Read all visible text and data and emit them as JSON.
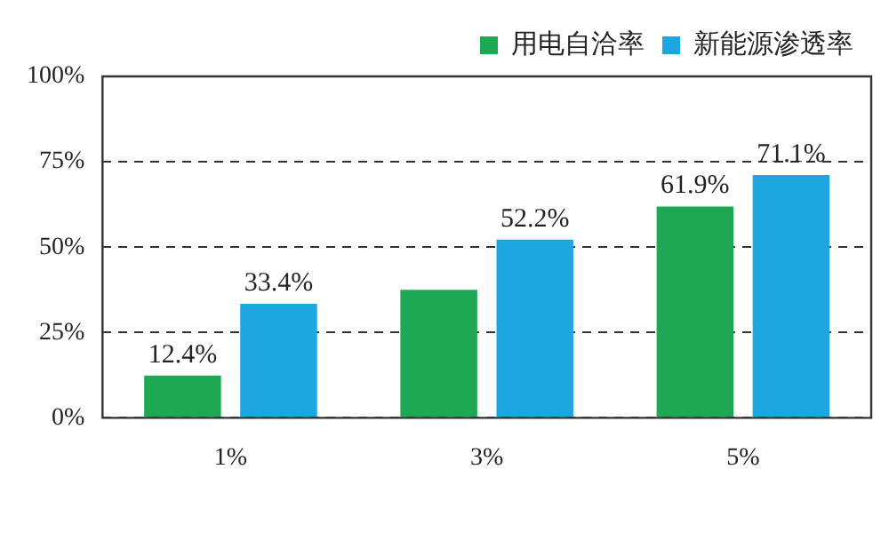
{
  "chart_data": {
    "type": "bar",
    "categories": [
      "1%",
      "3%",
      "5%"
    ],
    "series": [
      {
        "name": "用电自洽率",
        "color": "#1fa854",
        "values": [
          12.4,
          37.5,
          61.9
        ],
        "value_labels": [
          "12.4%",
          null,
          "61.9%"
        ]
      },
      {
        "name": "新能源渗透率",
        "color": "#1ea6e0",
        "values": [
          33.4,
          52.2,
          71.1
        ],
        "value_labels": [
          "33.4%",
          "52.2%",
          "71.1%"
        ]
      }
    ],
    "ylim": [
      0,
      100
    ],
    "yticks": [
      {
        "value": 0,
        "label": "0%"
      },
      {
        "value": 25,
        "label": "25%"
      },
      {
        "value": 50,
        "label": "50%"
      },
      {
        "value": 75,
        "label": "75%"
      },
      {
        "value": 100,
        "label": "100%"
      }
    ],
    "grid": "y",
    "legend": "top right"
  }
}
